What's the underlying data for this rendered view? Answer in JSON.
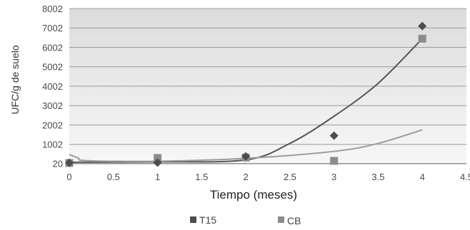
{
  "chart_data": {
    "type": "scatter",
    "xlabel": "Tiempo (meses)",
    "ylabel": "UFC/g de suelo",
    "x_ticks": [
      "0",
      "0.5",
      "1",
      "1.5",
      "2",
      "2.5",
      "3",
      "3.5",
      "4",
      "4.5"
    ],
    "y_ticks": [
      "20",
      "1002",
      "2002",
      "3002",
      "4002",
      "5002",
      "6002",
      "7002",
      "8002"
    ],
    "xlim": [
      0,
      4.5
    ],
    "ylim": [
      0,
      8002
    ],
    "grid": true,
    "legend_position": "bottom",
    "series": [
      {
        "name": "T15",
        "marker": "diamond",
        "color": "#4d4d4d",
        "x": [
          0,
          1,
          2,
          3,
          4
        ],
        "y": [
          50,
          60,
          380,
          1450,
          7100
        ],
        "trendline": [
          {
            "x": 0,
            "y": 80
          },
          {
            "x": 1,
            "y": 100
          },
          {
            "x": 2,
            "y": 200
          },
          {
            "x": 2.5,
            "y": 1050
          },
          {
            "x": 3,
            "y": 2450
          },
          {
            "x": 3.5,
            "y": 4150
          },
          {
            "x": 4,
            "y": 6450
          }
        ]
      },
      {
        "name": "CB",
        "marker": "square",
        "color": "#8c8c8c",
        "x": [
          0,
          1,
          2,
          3,
          4
        ],
        "y": [
          40,
          300,
          320,
          150,
          6450
        ],
        "trendline": [
          {
            "x": 0,
            "y": 480
          },
          {
            "x": 0.1,
            "y": 300
          },
          {
            "x": 0.2,
            "y": 160
          },
          {
            "x": 1,
            "y": 130
          },
          {
            "x": 2,
            "y": 280
          },
          {
            "x": 3,
            "y": 640
          },
          {
            "x": 3.5,
            "y": 1050
          },
          {
            "x": 4,
            "y": 1750
          }
        ]
      }
    ]
  },
  "colors": {
    "plot_background_top": "#dcdcdc",
    "plot_background_bottom": "#f7f7f7",
    "gridline": "#9a9a9a",
    "trendline_t15": "#555555",
    "trendline_cb": "#9b9b9b"
  }
}
